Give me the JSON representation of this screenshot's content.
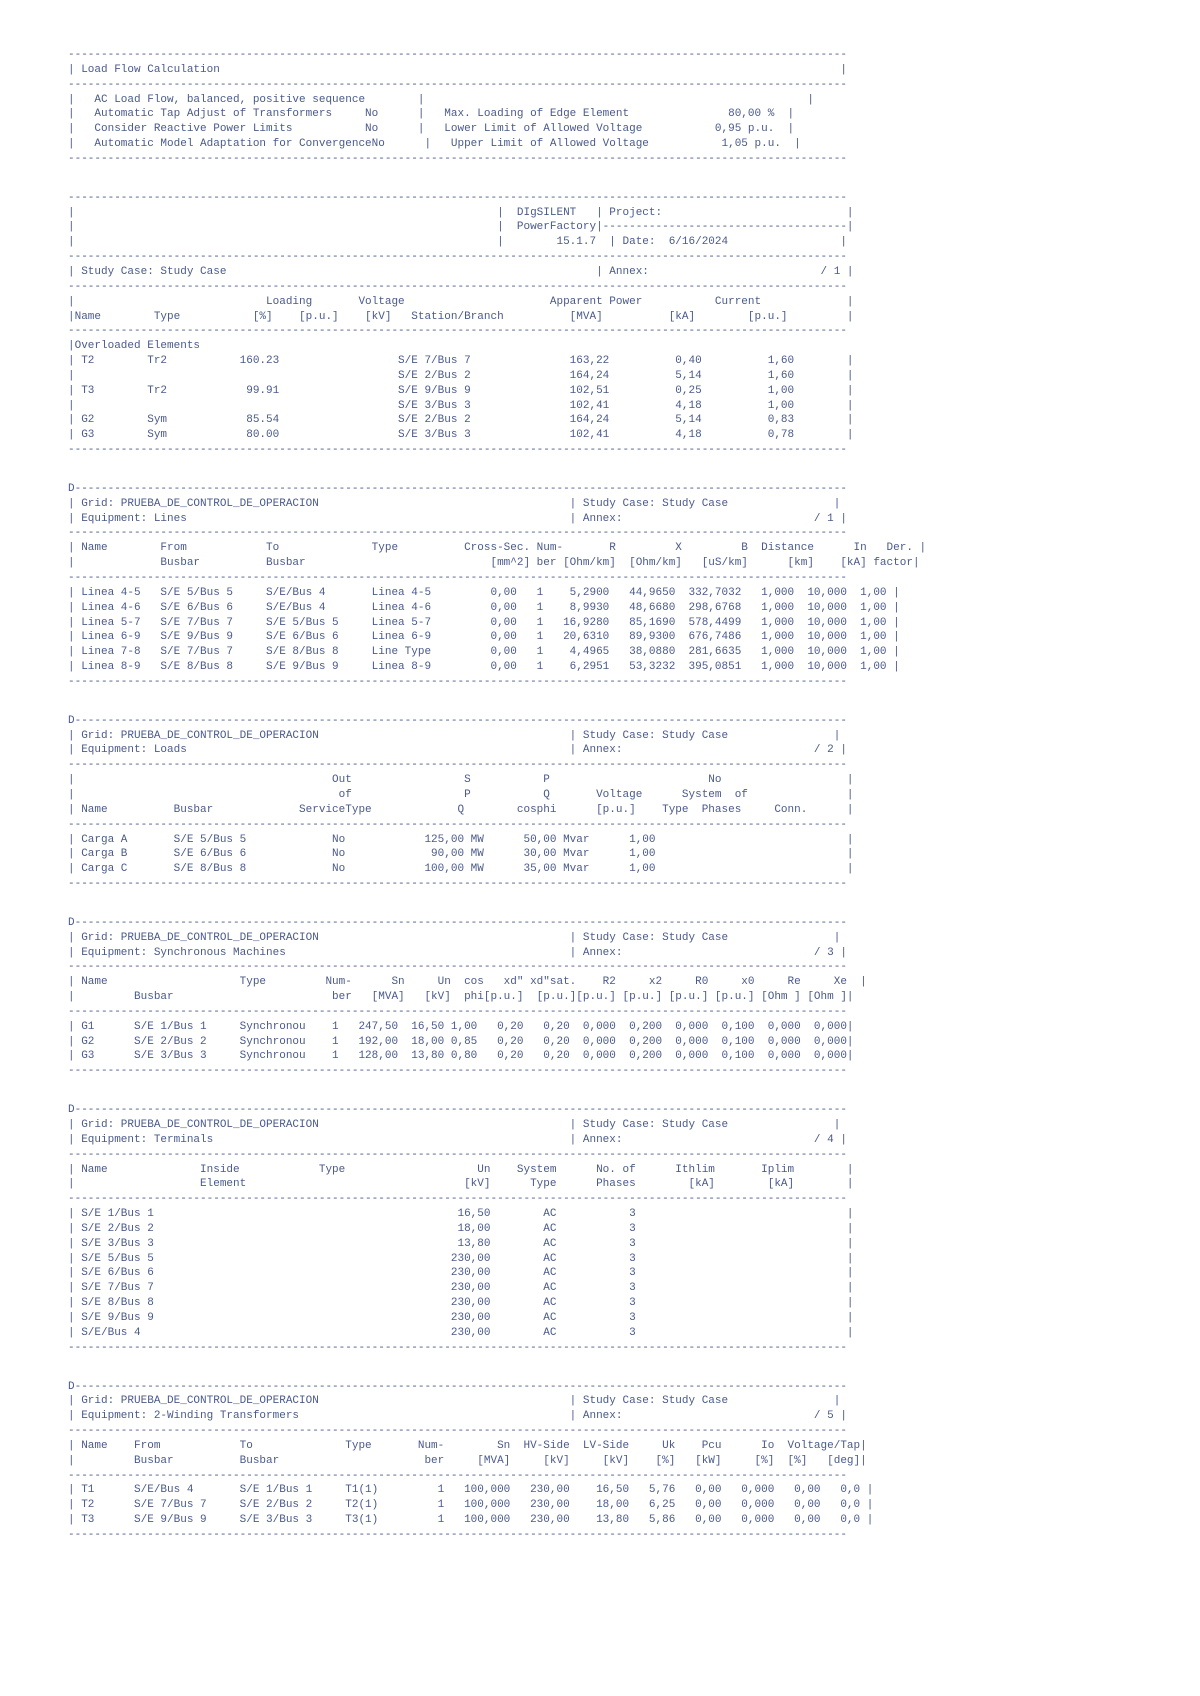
{
  "header": {
    "title": "Load Flow Calculation",
    "settings": [
      {
        "label": "AC Load Flow, balanced, positive sequence",
        "val": ""
      },
      {
        "label": "Automatic Tap Adjust of Transformers",
        "val": "No"
      },
      {
        "label": "Consider Reactive Power Limits",
        "val": "No"
      },
      {
        "label": "Automatic Model Adaptation for Convergence",
        "val": "No"
      }
    ],
    "limits": [
      {
        "label": "Max. Loading of Edge Element",
        "val": "80,00 %"
      },
      {
        "label": "Lower Limit of Allowed Voltage",
        "val": "0,95 p.u."
      },
      {
        "label": "Upper Limit of Allowed Voltage",
        "val": "1,05 p.u."
      }
    ]
  },
  "project_box": {
    "app": "DIgSILENT",
    "projectLabel": "Project:",
    "pf": "PowerFactory",
    "version": "15.1.7",
    "dateLabel": "Date:",
    "date": "6/16/2024"
  },
  "study": {
    "caseLabel": "Study Case: Study Case",
    "annex1": "/ 1",
    "annexLabel": "Annex:"
  },
  "overloaded": {
    "title": "Overloaded Elements",
    "columns": [
      "Name",
      "Type",
      "Loading [%]",
      "Voltage [p.u.]",
      "[kV]",
      "Station/Branch",
      "Apparent Power [MVA]",
      "Current [kA]",
      "[p.u.]"
    ],
    "rows": [
      {
        "name": "T2",
        "type": "Tr2",
        "loading": "160.23",
        "station": "S/E 7/Bus 7",
        "mva": "163,22",
        "ka": "0,40",
        "pu": "1,60"
      },
      {
        "name": "",
        "type": "",
        "loading": "",
        "station": "S/E 2/Bus 2",
        "mva": "164,24",
        "ka": "5,14",
        "pu": "1,60"
      },
      {
        "name": "T3",
        "type": "Tr2",
        "loading": "99.91",
        "station": "S/E 9/Bus 9",
        "mva": "102,51",
        "ka": "0,25",
        "pu": "1,00"
      },
      {
        "name": "",
        "type": "",
        "loading": "",
        "station": "S/E 3/Bus 3",
        "mva": "102,41",
        "ka": "4,18",
        "pu": "1,00"
      },
      {
        "name": "G2",
        "type": "Sym",
        "loading": "85.54",
        "station": "S/E 2/Bus 2",
        "mva": "164,24",
        "ka": "5,14",
        "pu": "0,83"
      },
      {
        "name": "G3",
        "type": "Sym",
        "loading": "80.00",
        "station": "S/E 3/Bus 3",
        "mva": "102,41",
        "ka": "4,18",
        "pu": "0,78"
      }
    ]
  },
  "lines": {
    "grid": "Grid: PRUEBA_DE_CONTROL_DE_OPERACION",
    "equip": "Equipment: Lines",
    "annex": "/ 1",
    "headers": [
      "Name",
      "From Busbar",
      "To Busbar",
      "Type",
      "Cross-Sec. [mm^2]",
      "Num-ber",
      "R [Ohm/km]",
      "X [Ohm/km]",
      "B [uS/km]",
      "Distance [km]",
      "In [kA]",
      "Der. factor"
    ],
    "rows": [
      [
        "Linea 4-5",
        "S/E 5/Bus 5",
        "S/E/Bus 4",
        "Linea 4-5",
        "0,00",
        "1",
        "5,2900",
        "44,9650",
        "332,7032",
        "1,000",
        "10,000",
        "1,00"
      ],
      [
        "Linea 4-6",
        "S/E 6/Bus 6",
        "S/E/Bus 4",
        "Linea 4-6",
        "0,00",
        "1",
        "8,9930",
        "48,6680",
        "298,6768",
        "1,000",
        "10,000",
        "1,00"
      ],
      [
        "Linea 5-7",
        "S/E 7/Bus 7",
        "S/E 5/Bus 5",
        "Linea 5-7",
        "0,00",
        "1",
        "16,9280",
        "85,1690",
        "578,4499",
        "1,000",
        "10,000",
        "1,00"
      ],
      [
        "Linea 6-9",
        "S/E 9/Bus 9",
        "S/E 6/Bus 6",
        "Linea 6-9",
        "0,00",
        "1",
        "20,6310",
        "89,9300",
        "676,7486",
        "1,000",
        "10,000",
        "1,00"
      ],
      [
        "Linea 7-8",
        "S/E 7/Bus 7",
        "S/E 8/Bus 8",
        "Line Type",
        "0,00",
        "1",
        "4,4965",
        "38,0880",
        "281,6635",
        "1,000",
        "10,000",
        "1,00"
      ],
      [
        "Linea 8-9",
        "S/E 8/Bus 8",
        "S/E 9/Bus 9",
        "Linea 8-9",
        "0,00",
        "1",
        "6,2951",
        "53,3232",
        "395,0851",
        "1,000",
        "10,000",
        "1,00"
      ]
    ]
  },
  "loads": {
    "grid": "Grid: PRUEBA_DE_CONTROL_DE_OPERACION",
    "equip": "Equipment: Loads",
    "annex": "/ 2",
    "rows": [
      [
        "Carga A",
        "S/E 5/Bus 5",
        "No",
        "125,00",
        "MW",
        "50,00 Mvar",
        "1,00"
      ],
      [
        "Carga B",
        "S/E 6/Bus 6",
        "No",
        "90,00",
        "MW",
        "30,00 Mvar",
        "1,00"
      ],
      [
        "Carga C",
        "S/E 8/Bus 8",
        "No",
        "100,00",
        "MW",
        "35,00 Mvar",
        "1,00"
      ]
    ]
  },
  "synch": {
    "grid": "Grid: PRUEBA_DE_CONTROL_DE_OPERACION",
    "equip": "Equipment: Synchronous Machines",
    "annex": "/ 3",
    "rows": [
      [
        "G1",
        "S/E 1/Bus 1",
        "Synchronou",
        "1",
        "247,50",
        "16,50",
        "1,00",
        "0,20",
        "0,20",
        "0,000",
        "0,200",
        "0,000",
        "0,100",
        "0,000",
        "0,000"
      ],
      [
        "G2",
        "S/E 2/Bus 2",
        "Synchronou",
        "1",
        "192,00",
        "18,00",
        "0,85",
        "0,20",
        "0,20",
        "0,000",
        "0,200",
        "0,000",
        "0,100",
        "0,000",
        "0,000"
      ],
      [
        "G3",
        "S/E 3/Bus 3",
        "Synchronou",
        "1",
        "128,00",
        "13,80",
        "0,80",
        "0,20",
        "0,20",
        "0,000",
        "0,200",
        "0,000",
        "0,100",
        "0,000",
        "0,000"
      ]
    ]
  },
  "terminals": {
    "grid": "Grid: PRUEBA_DE_CONTROL_DE_OPERACION",
    "equip": "Equipment: Terminals",
    "annex": "/ 4",
    "rows": [
      [
        "S/E 1/Bus 1",
        "",
        "",
        "16,50",
        "AC",
        "3",
        "",
        ""
      ],
      [
        "S/E 2/Bus 2",
        "",
        "",
        "18,00",
        "AC",
        "3",
        "",
        ""
      ],
      [
        "S/E 3/Bus 3",
        "",
        "",
        "13,80",
        "AC",
        "3",
        "",
        ""
      ],
      [
        "S/E 5/Bus 5",
        "",
        "",
        "230,00",
        "AC",
        "3",
        "",
        ""
      ],
      [
        "S/E 6/Bus 6",
        "",
        "",
        "230,00",
        "AC",
        "3",
        "",
        ""
      ],
      [
        "S/E 7/Bus 7",
        "",
        "",
        "230,00",
        "AC",
        "3",
        "",
        ""
      ],
      [
        "S/E 8/Bus 8",
        "",
        "",
        "230,00",
        "AC",
        "3",
        "",
        ""
      ],
      [
        "S/E 9/Bus 9",
        "",
        "",
        "230,00",
        "AC",
        "3",
        "",
        ""
      ],
      [
        "S/E/Bus 4",
        "",
        "",
        "230,00",
        "AC",
        "3",
        "",
        ""
      ]
    ]
  },
  "transformers": {
    "grid": "Grid: PRUEBA_DE_CONTROL_DE_OPERACION",
    "equip": "Equipment: 2-Winding Transformers",
    "annex": "/ 5",
    "rows": [
      [
        "T1",
        "S/E/Bus 4",
        "S/E 1/Bus 1",
        "T1(1)",
        "1",
        "100,000",
        "230,00",
        "16,50",
        "5,76",
        "0,00",
        "0,000",
        "0,00",
        "0,0"
      ],
      [
        "T2",
        "S/E 7/Bus 7",
        "S/E 2/Bus 2",
        "T2(1)",
        "1",
        "100,000",
        "230,00",
        "18,00",
        "6,25",
        "0,00",
        "0,000",
        "0,00",
        "0,0"
      ],
      [
        "T3",
        "S/E 9/Bus 9",
        "S/E 3/Bus 3",
        "T3(1)",
        "1",
        "100,000",
        "230,00",
        "13,80",
        "5,86",
        "0,00",
        "0,000",
        "0,00",
        "0,0"
      ]
    ]
  }
}
